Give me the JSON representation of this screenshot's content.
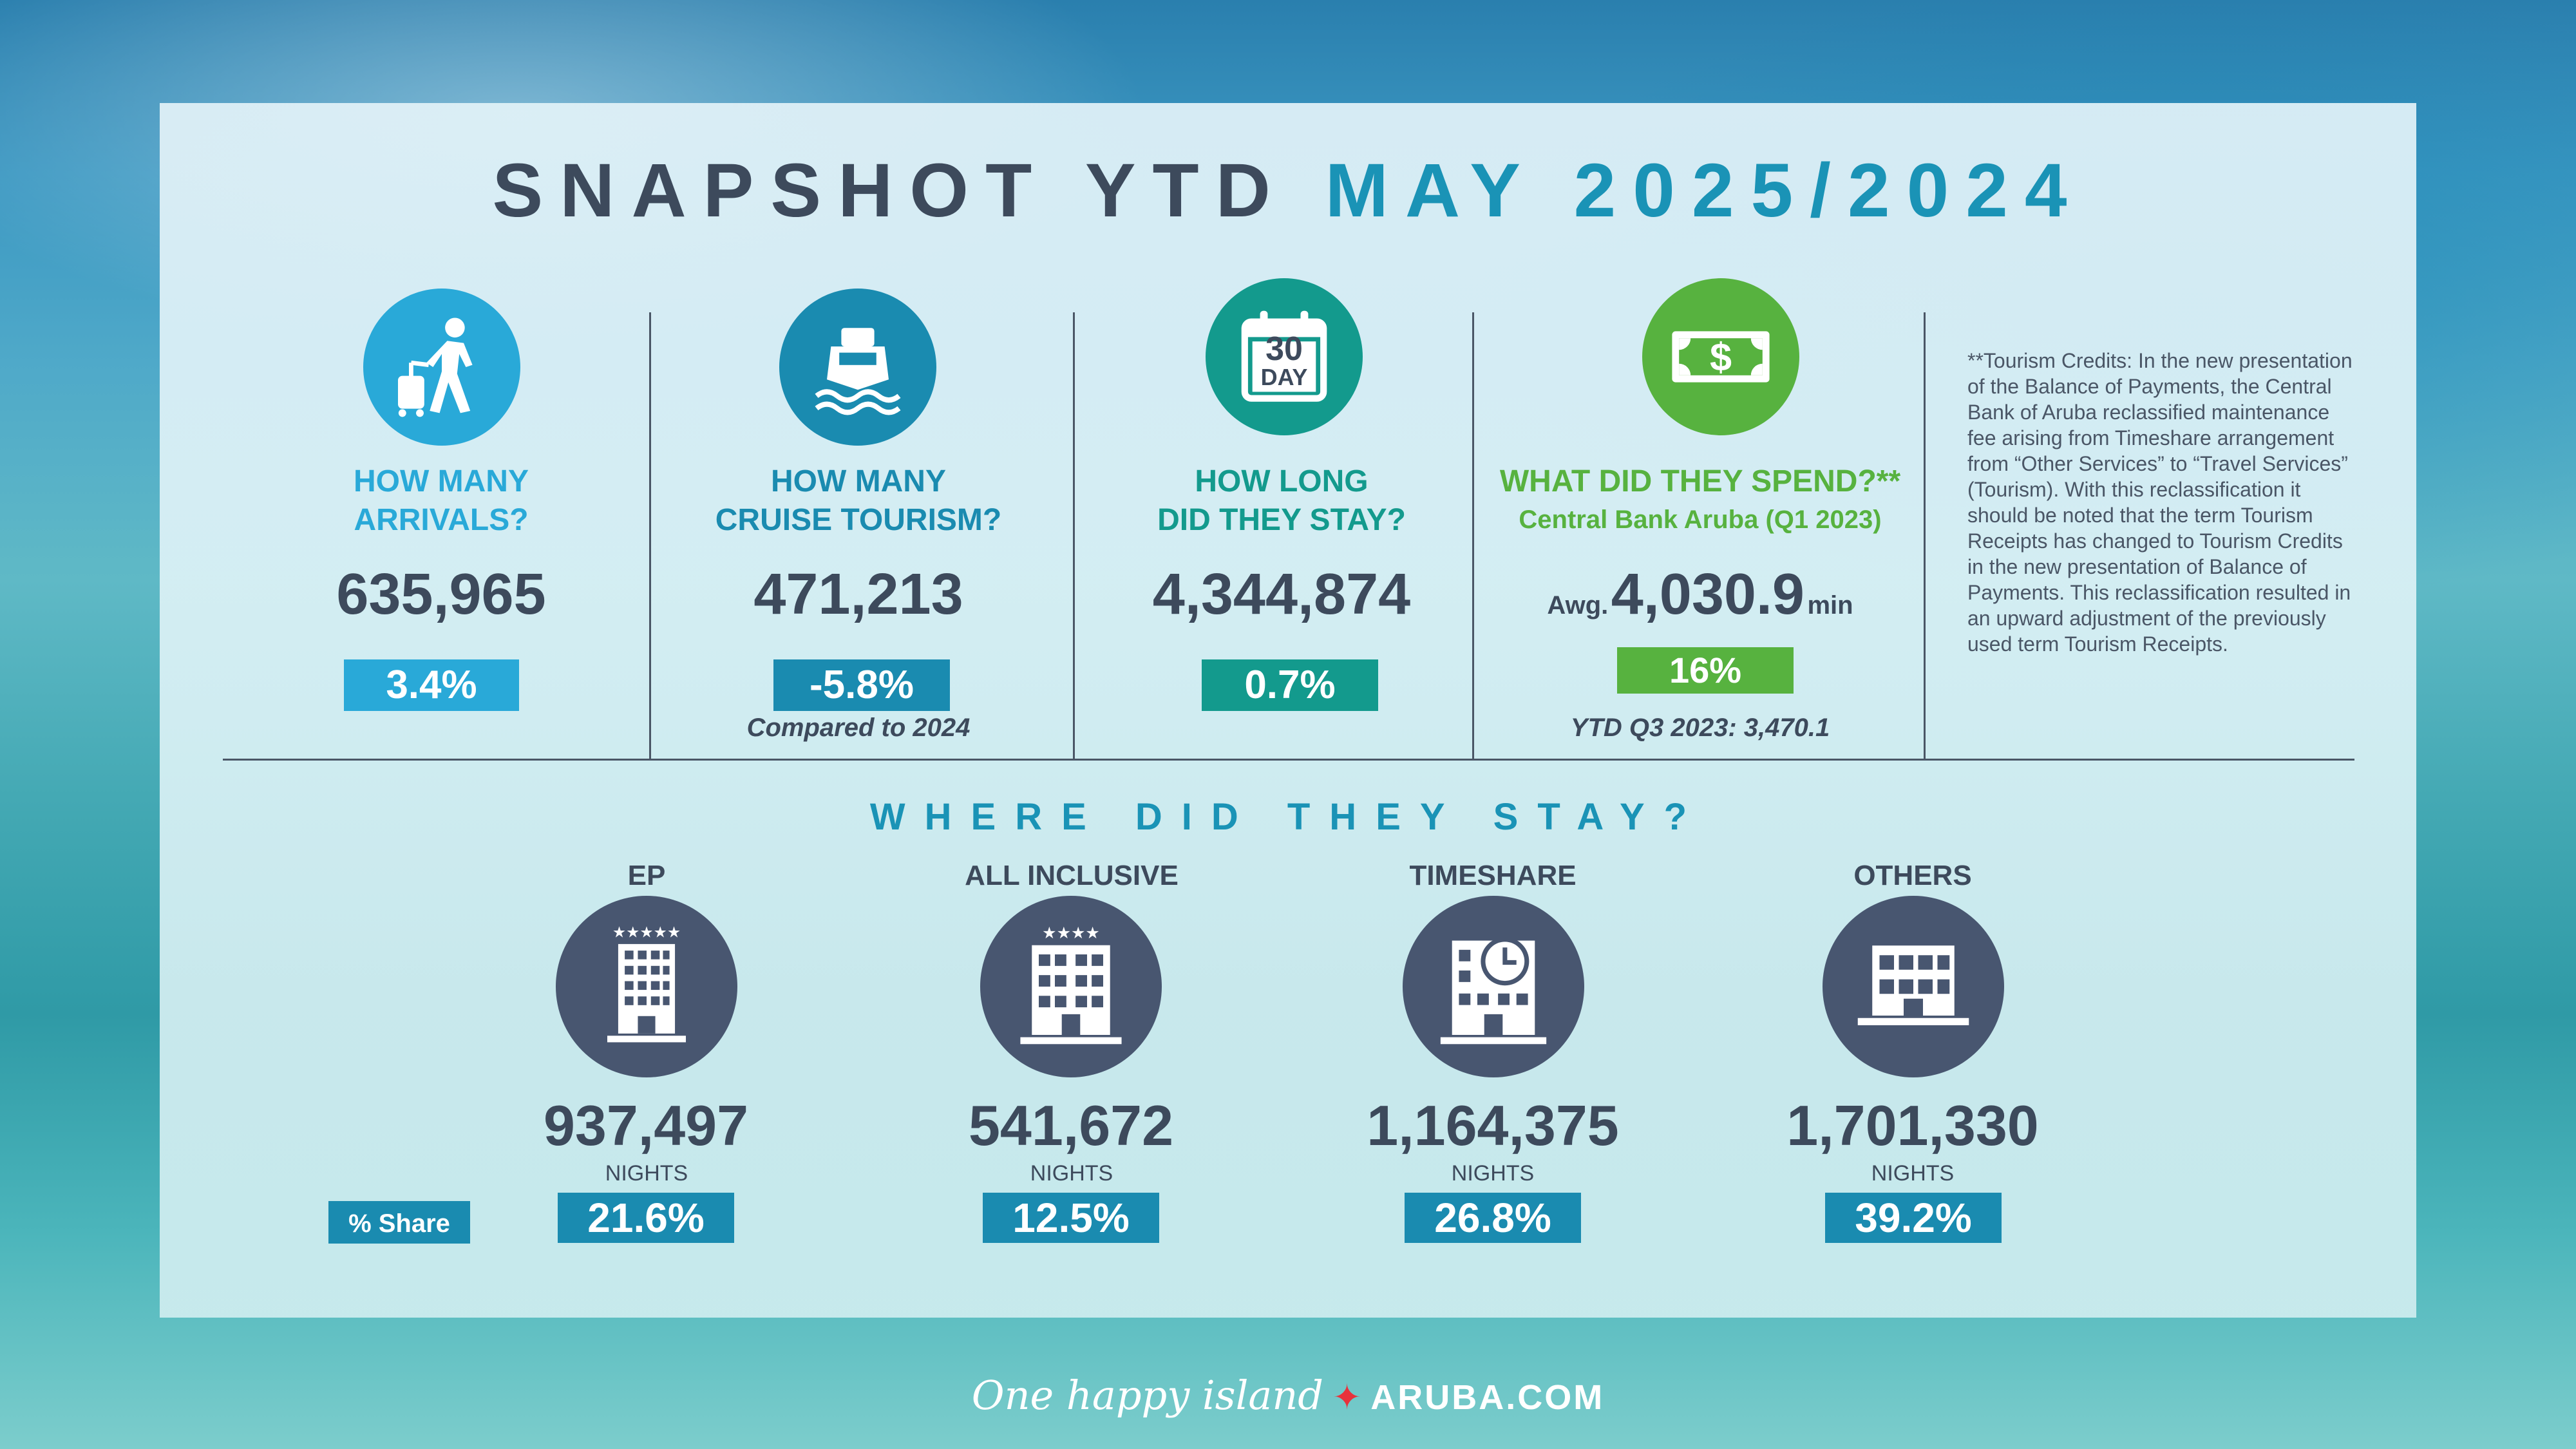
{
  "title": {
    "part1": "SNAPSHOT YTD",
    "part2": "MAY 2025/2024"
  },
  "colors": {
    "dark": "#3d4a5c",
    "blue": "#1a93b6",
    "light_blue": "#29a9d8",
    "teal": "#139a8d",
    "green": "#57b23f",
    "stay_circle": "#485670"
  },
  "metrics": [
    {
      "icon": "traveler-icon",
      "question_line1": "HOW MANY",
      "question_line2": "ARRIVALS?",
      "value": "635,965",
      "change": "3.4%",
      "note": ""
    },
    {
      "icon": "cruise-ship-icon",
      "question_line1": "HOW MANY",
      "question_line2": "CRUISE TOURISM?",
      "value": "471,213",
      "change": "-5.8%",
      "note": "Compared to 2024"
    },
    {
      "icon": "calendar-icon",
      "calendar_number": "30",
      "calendar_word": "DAY",
      "question_line1": "HOW LONG",
      "question_line2": "DID THEY STAY?",
      "value": "4,344,874",
      "change": "0.7%",
      "note": ""
    },
    {
      "icon": "money-icon",
      "question_line1": "WHAT DID THEY SPEND?**",
      "question_line2": "Central Bank Aruba (Q1 2023)",
      "value_prefix": "Awg.",
      "value": "4,030.9",
      "value_suffix": "min",
      "change": "16%",
      "note": "YTD Q3 2023: 3,470.1"
    }
  ],
  "footnote": "**Tourism Credits: In the new presentation of the Balance of Payments, the Central Bank of Aruba reclassified maintenance fee arising from Timeshare arrangement from “Other Services” to “Travel Services” (Tourism). With this reclassification it should be noted that the term Tourism Receipts has changed to Tourism Credits in the new presentation of Balance of Payments. This reclassification resulted in an upward adjustment of the previously used term Tourism Receipts.",
  "stay": {
    "title": "WHERE DID THEY STAY?",
    "share_label": "% Share",
    "nights_label": "NIGHTS",
    "items": [
      {
        "label": "EP",
        "icon": "hotel-5-star-icon",
        "nights": "937,497",
        "share": "21.6%"
      },
      {
        "label": "ALL INCLUSIVE",
        "icon": "hotel-4-star-icon",
        "nights": "541,672",
        "share": "12.5%"
      },
      {
        "label": "TIMESHARE",
        "icon": "timeshare-building-icon",
        "nights": "1,164,375",
        "share": "26.8%"
      },
      {
        "label": "OTHERS",
        "icon": "building-icon",
        "nights": "1,701,330",
        "share": "39.2%"
      }
    ]
  },
  "footer": {
    "tagline": "One happy island",
    "brand": "ARUBA.COM"
  }
}
